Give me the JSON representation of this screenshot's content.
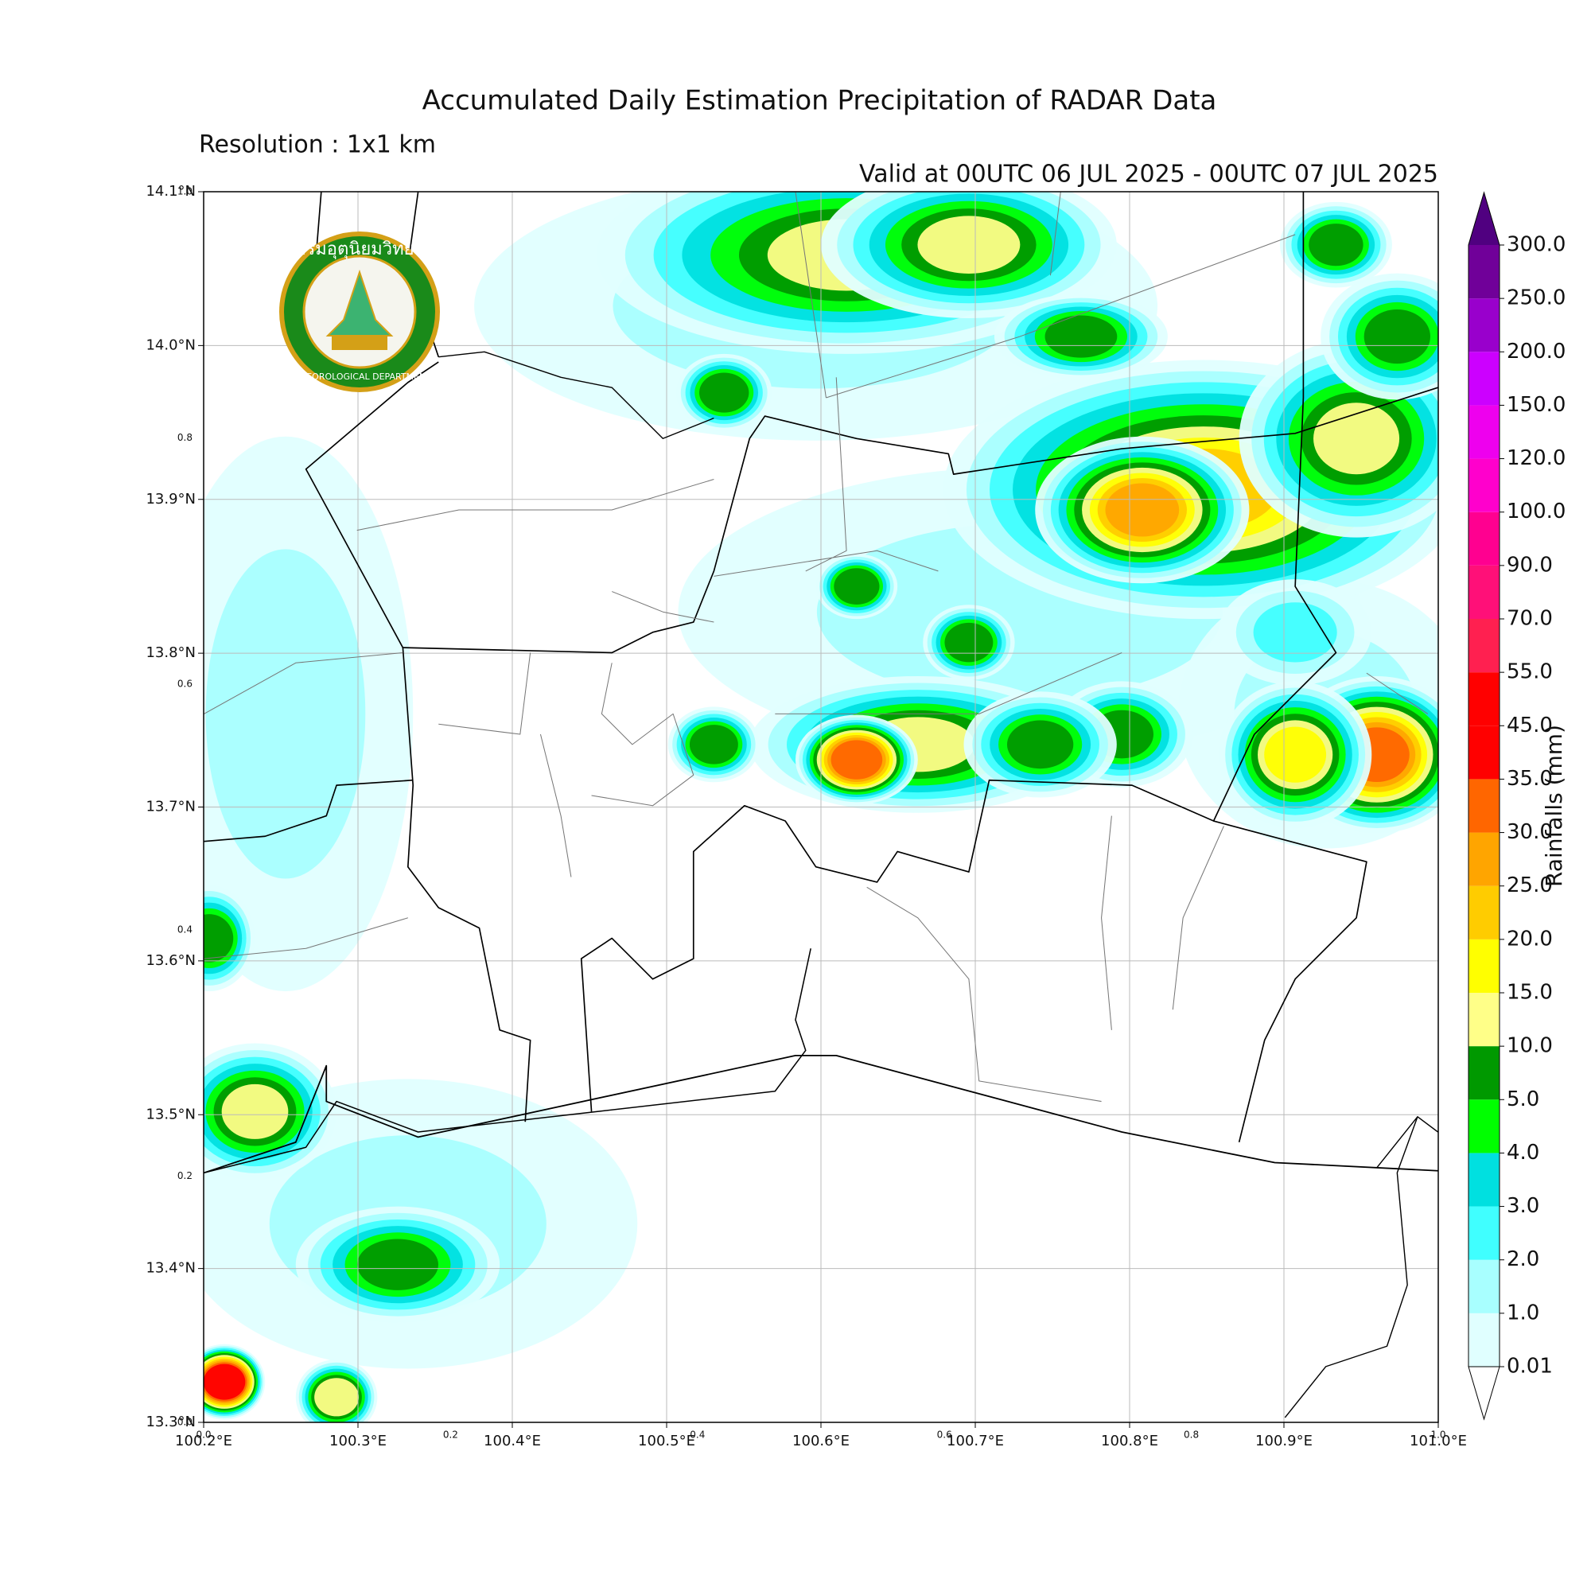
{
  "title": "Accumulated Daily Estimation Precipitation of RADAR Data",
  "subtitle": "Resolution : 1x1 km",
  "valid_time": "Valid at 00UTC 06 JUL 2025 - 00UTC 07 JUL 2025",
  "logo": {
    "thai_text": "กรมอุตุนิยมวิทยา",
    "english_text": "METEOROLOGICAL DEPARTMENT"
  },
  "map": {
    "xlim": [
      100.2,
      101.0
    ],
    "ylim": [
      13.3,
      14.1
    ],
    "xticks": [
      {
        "value": 100.2,
        "label": "100.2°E"
      },
      {
        "value": 100.3,
        "label": "100.3°E"
      },
      {
        "value": 100.4,
        "label": "100.4°E"
      },
      {
        "value": 100.5,
        "label": "100.5°E"
      },
      {
        "value": 100.6,
        "label": "100.6°E"
      },
      {
        "value": 100.7,
        "label": "100.7°E"
      },
      {
        "value": 100.8,
        "label": "100.8°E"
      },
      {
        "value": 100.9,
        "label": "100.9°E"
      },
      {
        "value": 101.0,
        "label": "101.0°E"
      }
    ],
    "yticks": [
      {
        "value": 13.3,
        "label": "13.3°N"
      },
      {
        "value": 13.4,
        "label": "13.4°N"
      },
      {
        "value": 13.5,
        "label": "13.5°N"
      },
      {
        "value": 13.6,
        "label": "13.6°N"
      },
      {
        "value": 13.7,
        "label": "13.7°N"
      },
      {
        "value": 13.8,
        "label": "13.8°N"
      },
      {
        "value": 13.9,
        "label": "13.9°N"
      },
      {
        "value": 14.0,
        "label": "14.0°N"
      },
      {
        "value": 14.1,
        "label": "14.1°N"
      }
    ],
    "grid": true
  },
  "inner_axis": {
    "lim": [
      0,
      1
    ],
    "xticks": [
      {
        "value": 0.0,
        "label": "0.0"
      },
      0.2,
      0.4,
      0.6,
      0.8,
      {
        "value": 1.0,
        "label": "1.0"
      }
    ],
    "yticks": [
      {
        "value": 0.0,
        "label": "0.0"
      },
      0.2,
      0.4,
      0.6,
      0.8,
      {
        "value": 1.0,
        "label": "1.0"
      }
    ]
  },
  "colorbar": {
    "label": "Rainfalls (mm)",
    "levels": [
      {
        "value": 0.01,
        "label": "0.01"
      },
      {
        "value": 1,
        "label": "1.0"
      },
      {
        "value": 2,
        "label": "2.0"
      },
      {
        "value": 3,
        "label": "3.0"
      },
      {
        "value": 4,
        "label": "4.0"
      },
      {
        "value": 5,
        "label": "5.0"
      },
      {
        "value": 10,
        "label": "10.0"
      },
      {
        "value": 15,
        "label": "15.0"
      },
      {
        "value": 20,
        "label": "20.0"
      },
      {
        "value": 25,
        "label": "25.0"
      },
      {
        "value": 30,
        "label": "30.0"
      },
      {
        "value": 35,
        "label": "35.0"
      },
      {
        "value": 45,
        "label": "45.0"
      },
      {
        "value": 55,
        "label": "55.0"
      },
      {
        "value": 70,
        "label": "70.0"
      },
      {
        "value": 90,
        "label": "90.0"
      },
      {
        "value": 100,
        "label": "100.0"
      },
      {
        "value": 120,
        "label": "120.0"
      },
      {
        "value": 150,
        "label": "150.0"
      },
      {
        "value": 200,
        "label": "200.0"
      },
      {
        "value": 250,
        "label": "250.0"
      },
      {
        "value": 300,
        "label": "300.0"
      }
    ],
    "colors": [
      "#e0ffff",
      "#a8ffff",
      "#40ffff",
      "#00e0e0",
      "#00ff00",
      "#009900",
      "#ffff88",
      "#ffff00",
      "#ffcc00",
      "#ffa500",
      "#ff6600",
      "#ff0000",
      "#ff0000",
      "#ff2050",
      "#ff1078",
      "#ff0090",
      "#ff00cc",
      "#ee00ee",
      "#cc00ff",
      "#9900cc",
      "#700099"
    ],
    "under_color": "#ffffff",
    "over_color": "#500080"
  }
}
